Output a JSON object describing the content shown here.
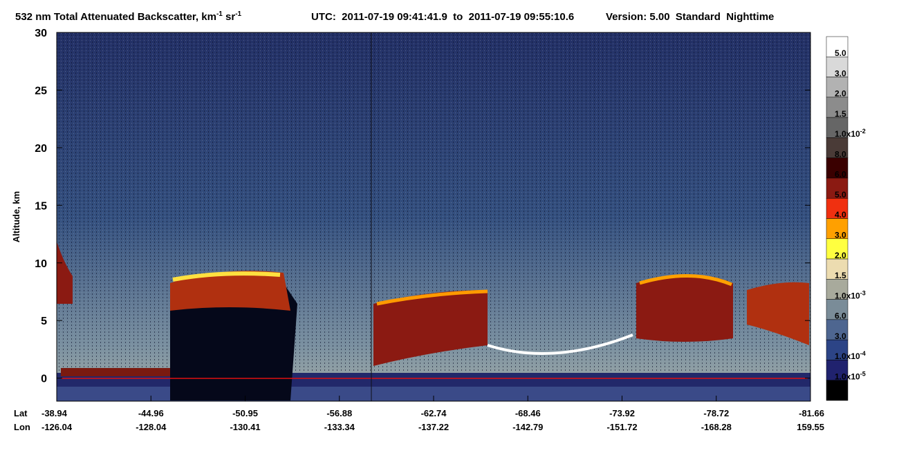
{
  "chart_data": {
    "type": "curtain",
    "title": [
      "532 nm Total Attenuated Backscatter, km",
      "-1",
      " sr",
      "-1"
    ],
    "utc": "UTC:  2011-07-19 09:41:41.9  to  2011-07-19 09:55:10.6",
    "version": "Version: 5.00  Standard  Nighttime",
    "y_label": "Altitude, km",
    "ylim": [
      -2,
      30
    ],
    "yticks": [
      0,
      5,
      10,
      15,
      20,
      25,
      30
    ],
    "x_row_labels": [
      "Lat",
      "Lon"
    ],
    "lat": [
      "-38.94",
      "-44.96",
      "-50.95",
      "-56.88",
      "-62.74",
      "-68.46",
      "-73.92",
      "-78.72",
      "-81.66"
    ],
    "lon": [
      "-126.04",
      "-128.04",
      "-130.41",
      "-133.34",
      "-137.22",
      "-142.79",
      "-151.72",
      "-168.28",
      "159.55"
    ],
    "colorbar": {
      "colors": [
        "#ffffff",
        "#d9d9d9",
        "#b2b2b2",
        "#8c8c8c",
        "#666666",
        "#4a3b37",
        "#3a0000",
        "#8b1a12",
        "#f03010",
        "#ffa000",
        "#ffff40",
        "#ecdcb0",
        "#a8aa9c",
        "#7a8c98",
        "#4e6690",
        "#2c4486",
        "#20226e",
        "#000000"
      ],
      "labels": [
        {
          "label": "5.0"
        },
        {
          "label": "3.0"
        },
        {
          "label": "2.0"
        },
        {
          "label": "1.5"
        },
        {
          "label": "1.0x10",
          "sup": "-2"
        },
        {
          "label": "8.0"
        },
        {
          "label": "6.0"
        },
        {
          "label": "5.0"
        },
        {
          "label": "4.0"
        },
        {
          "label": "3.0"
        },
        {
          "label": "2.0"
        },
        {
          "label": "1.5"
        },
        {
          "label": "1.0x10",
          "sup": "-3"
        },
        {
          "label": "6.0"
        },
        {
          "label": "3.0"
        },
        {
          "label": "1.0x10",
          "sup": "-4"
        },
        {
          "label": "1.0x10",
          "sup": "-5"
        }
      ]
    }
  }
}
